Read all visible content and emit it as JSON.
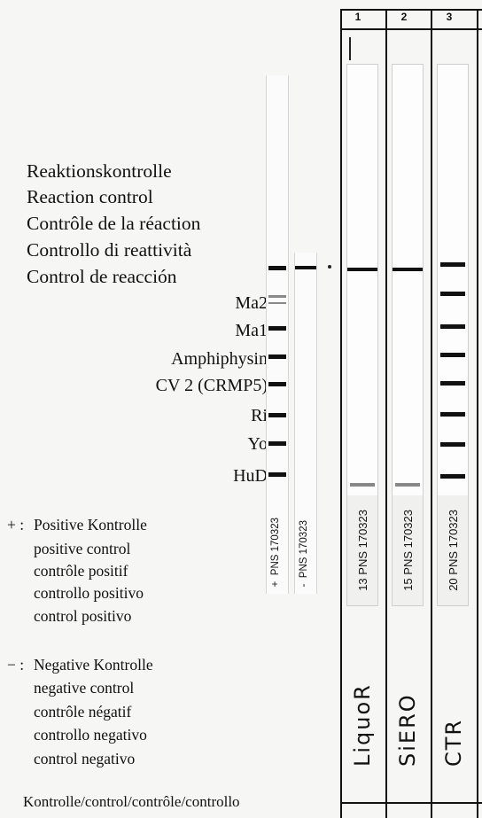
{
  "reaction_control_labels": [
    "Reaktionskontrolle",
    "Reaction control",
    "Contrôle de la réaction",
    "Controllo di reattività",
    "Control de reacción"
  ],
  "antigens": [
    "Ma2",
    "Ma1",
    "Amphiphysin",
    "CV 2 (CRMP5)",
    "Ri",
    "Yo",
    "HuD"
  ],
  "legend": {
    "positive": {
      "symbol": "+ :",
      "lines": [
        "Positive Kontrolle",
        "positive control",
        "contrôle positif",
        "controllo positivo",
        "control positivo"
      ]
    },
    "negative": {
      "symbol": "− :",
      "lines": [
        "Negative Kontrolle",
        "negative control",
        "contrôle négatif",
        "controllo negativo",
        "control negativo"
      ]
    }
  },
  "reference_strips": {
    "positive": {
      "sign": "+",
      "code": "PNS 170323"
    },
    "negative": {
      "sign": "-",
      "code": "PNS 170323"
    }
  },
  "columns": [
    {
      "number": "1",
      "strip_code": "13  PNS 170323",
      "handwritten": "LiquoR"
    },
    {
      "number": "2",
      "strip_code": "15  PNS 170323",
      "handwritten": "SiERO"
    },
    {
      "number": "3",
      "strip_code": "20  PNS 170323",
      "handwritten": "CTR"
    }
  ],
  "footer": "Kontrolle/control/contrôle/controllo"
}
